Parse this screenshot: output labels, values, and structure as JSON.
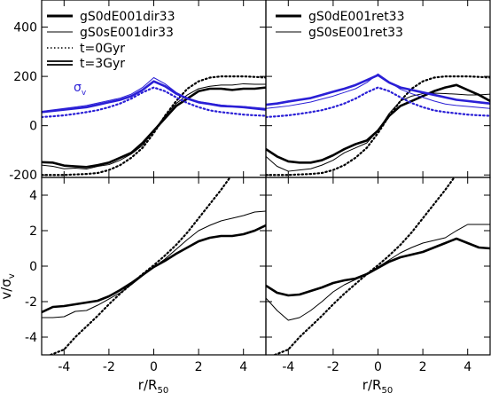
{
  "colors": {
    "black": "#000000",
    "blue": "#2a1fd6"
  },
  "figure": {
    "xlabel": "r/R",
    "xlabel_sub": "50",
    "ylabel": "v/σ",
    "ylabel_sub": "v",
    "sigma_label": "σ",
    "sigma_label_sub": "v",
    "legend_left": [
      {
        "text": "gS0dE001dir33",
        "style": "thick"
      },
      {
        "text": "gS0sE001dir33",
        "style": "thin"
      },
      {
        "text": "t=0Gyr",
        "style": "dotted"
      },
      {
        "text": "t=3Gyr",
        "style": "double"
      }
    ],
    "legend_right": [
      {
        "text": "gS0dE001ret33",
        "style": "thick"
      },
      {
        "text": "gS0sE001ret33",
        "style": "thin"
      }
    ]
  },
  "chart_data": [
    {
      "id": "top-left",
      "type": "line",
      "xlim": [
        -5,
        5
      ],
      "ylim": [
        -210,
        510
      ],
      "x_ticks": [
        -4,
        -2,
        0,
        2,
        4
      ],
      "y_ticks": [
        -200,
        0,
        200,
        400
      ],
      "series": [
        {
          "name": "gS0dE001dir33",
          "time": "t=3Gyr",
          "quantity": "v",
          "color": "black",
          "style": "thick",
          "x": [
            -5,
            -4.5,
            -4,
            -3.5,
            -3,
            -2.5,
            -2,
            -1.5,
            -1,
            -0.5,
            0,
            0.5,
            1,
            1.5,
            2,
            2.5,
            3,
            3.5,
            4,
            4.5,
            5
          ],
          "y": [
            -148,
            -150,
            -162,
            -165,
            -168,
            -160,
            -150,
            -130,
            -110,
            -70,
            -20,
            30,
            80,
            110,
            140,
            150,
            150,
            145,
            150,
            150,
            155
          ]
        },
        {
          "name": "gS0sE001dir33",
          "time": "t=3Gyr",
          "quantity": "v",
          "color": "black",
          "style": "thin",
          "x": [
            -5,
            -4.5,
            -4,
            -3.5,
            -3,
            -2.5,
            -2,
            -1.5,
            -1,
            -0.5,
            0,
            0.5,
            1,
            1.5,
            2,
            2.5,
            3,
            3.5,
            4,
            4.5,
            5
          ],
          "y": [
            -160,
            -165,
            -175,
            -172,
            -176,
            -165,
            -158,
            -140,
            -115,
            -80,
            -20,
            40,
            90,
            125,
            150,
            160,
            165,
            165,
            170,
            168,
            168
          ]
        },
        {
          "name": "t=0Gyr",
          "time": "t=0Gyr",
          "quantity": "v",
          "color": "black",
          "style": "dotted",
          "x": [
            -5,
            -4.5,
            -4,
            -3.5,
            -3,
            -2.5,
            -2,
            -1.5,
            -1,
            -0.5,
            0,
            0.5,
            1,
            1.5,
            2,
            2.5,
            3,
            3.5,
            4,
            4.5,
            5
          ],
          "y": [
            -200,
            -200,
            -200,
            -198,
            -196,
            -192,
            -180,
            -160,
            -130,
            -90,
            -30,
            40,
            100,
            150,
            180,
            195,
            200,
            200,
            200,
            198,
            195
          ]
        },
        {
          "name": "gS0dE001dir33",
          "time": "t=3Gyr",
          "quantity": "sigma",
          "color": "blue",
          "style": "thick",
          "x": [
            -5,
            -4.5,
            -4,
            -3.5,
            -3,
            -2.5,
            -2,
            -1.5,
            -1,
            -0.5,
            0,
            0.5,
            1,
            1.5,
            2,
            2.5,
            3,
            3.5,
            4,
            4.5,
            5
          ],
          "y": [
            55,
            60,
            65,
            70,
            75,
            85,
            95,
            105,
            120,
            145,
            180,
            160,
            130,
            110,
            95,
            88,
            80,
            78,
            75,
            70,
            65
          ]
        },
        {
          "name": "gS0sE001dir33",
          "time": "t=3Gyr",
          "quantity": "sigma",
          "color": "blue",
          "style": "thin",
          "x": [
            -5,
            -4.5,
            -4,
            -3.5,
            -3,
            -2.5,
            -2,
            -1.5,
            -1,
            -0.5,
            0,
            0.5,
            1,
            1.5,
            2,
            2.5,
            3,
            3.5,
            4,
            4.5,
            5
          ],
          "y": [
            58,
            64,
            70,
            76,
            82,
            92,
            102,
            112,
            128,
            155,
            195,
            170,
            135,
            112,
            98,
            90,
            84,
            80,
            78,
            74,
            70
          ]
        },
        {
          "name": "t=0Gyr",
          "time": "t=0Gyr",
          "quantity": "sigma",
          "color": "blue",
          "style": "dotted",
          "x": [
            -5,
            -4.5,
            -4,
            -3.5,
            -3,
            -2.5,
            -2,
            -1.5,
            -1,
            -0.5,
            0,
            0.5,
            1,
            1.5,
            2,
            2.5,
            3,
            3.5,
            4,
            4.5,
            5
          ],
          "y": [
            35,
            38,
            42,
            48,
            55,
            63,
            75,
            90,
            110,
            135,
            155,
            140,
            115,
            92,
            75,
            62,
            55,
            50,
            45,
            42,
            40
          ]
        }
      ]
    },
    {
      "id": "top-right",
      "type": "line",
      "xlim": [
        -5,
        5
      ],
      "ylim": [
        -210,
        510
      ],
      "x_ticks": [
        -4,
        -2,
        0,
        2,
        4
      ],
      "y_ticks": [
        -200,
        0,
        200,
        400
      ],
      "series": [
        {
          "name": "gS0dE001ret33",
          "time": "t=3Gyr",
          "quantity": "v",
          "color": "black",
          "style": "thick",
          "x": [
            -5,
            -4.5,
            -4,
            -3.5,
            -3,
            -2.5,
            -2,
            -1.5,
            -1,
            -0.5,
            0,
            0.5,
            1,
            1.5,
            2,
            2.5,
            3,
            3.5,
            4,
            4.5,
            5
          ],
          "y": [
            -95,
            -125,
            -145,
            -150,
            -150,
            -140,
            -120,
            -95,
            -75,
            -60,
            -20,
            40,
            80,
            100,
            120,
            140,
            155,
            165,
            145,
            125,
            100
          ]
        },
        {
          "name": "gS0sE001ret33",
          "time": "t=3Gyr",
          "quantity": "v",
          "color": "black",
          "style": "thin",
          "x": [
            -5,
            -4.5,
            -4,
            -3.5,
            -3,
            -2.5,
            -2,
            -1.5,
            -1,
            -0.5,
            0,
            0.5,
            1,
            1.5,
            2,
            2.5,
            3,
            3.5,
            4,
            4.5,
            5
          ],
          "y": [
            -125,
            -165,
            -185,
            -180,
            -175,
            -160,
            -140,
            -110,
            -90,
            -70,
            -20,
            50,
            100,
            120,
            130,
            132,
            130,
            128,
            125,
            125,
            128
          ]
        },
        {
          "name": "t=0Gyr",
          "time": "t=0Gyr",
          "quantity": "v",
          "color": "black",
          "style": "dotted",
          "x": [
            -5,
            -4.5,
            -4,
            -3.5,
            -3,
            -2.5,
            -2,
            -1.5,
            -1,
            -0.5,
            0,
            0.5,
            1,
            1.5,
            2,
            2.5,
            3,
            3.5,
            4,
            4.5,
            5
          ],
          "y": [
            -200,
            -200,
            -200,
            -198,
            -196,
            -192,
            -180,
            -160,
            -130,
            -90,
            -30,
            40,
            100,
            150,
            180,
            195,
            200,
            200,
            200,
            198,
            195
          ]
        },
        {
          "name": "gS0dE001ret33",
          "time": "t=3Gyr",
          "quantity": "sigma",
          "color": "blue",
          "style": "thick",
          "x": [
            -5,
            -4.5,
            -4,
            -3.5,
            -3,
            -2.5,
            -2,
            -1.5,
            -1,
            -0.5,
            0,
            0.5,
            1,
            1.5,
            2,
            2.5,
            3,
            3.5,
            4,
            4.5,
            5
          ],
          "y": [
            85,
            90,
            98,
            105,
            112,
            125,
            138,
            150,
            165,
            185,
            205,
            175,
            155,
            145,
            135,
            125,
            115,
            105,
            100,
            95,
            90
          ]
        },
        {
          "name": "gS0sE001ret33",
          "time": "t=3Gyr",
          "quantity": "sigma",
          "color": "blue",
          "style": "thin",
          "x": [
            -5,
            -4.5,
            -4,
            -3.5,
            -3,
            -2.5,
            -2,
            -1.5,
            -1,
            -0.5,
            0,
            0.5,
            1,
            1.5,
            2,
            2.5,
            3,
            3.5,
            4,
            4.5,
            5
          ],
          "y": [
            70,
            75,
            80,
            88,
            96,
            108,
            120,
            135,
            150,
            175,
            210,
            178,
            148,
            130,
            115,
            100,
            88,
            82,
            78,
            74,
            70
          ]
        },
        {
          "name": "t=0Gyr",
          "time": "t=0Gyr",
          "quantity": "sigma",
          "color": "blue",
          "style": "dotted",
          "x": [
            -5,
            -4.5,
            -4,
            -3.5,
            -3,
            -2.5,
            -2,
            -1.5,
            -1,
            -0.5,
            0,
            0.5,
            1,
            1.5,
            2,
            2.5,
            3,
            3.5,
            4,
            4.5,
            5
          ],
          "y": [
            35,
            38,
            42,
            48,
            55,
            63,
            75,
            90,
            110,
            135,
            155,
            140,
            115,
            92,
            75,
            62,
            55,
            50,
            45,
            42,
            40
          ]
        }
      ]
    },
    {
      "id": "bottom-left",
      "type": "line",
      "xlim": [
        -5,
        5
      ],
      "ylim": [
        -5,
        5
      ],
      "x_ticks": [
        -4,
        -2,
        0,
        2,
        4
      ],
      "y_ticks": [
        -4,
        -2,
        0,
        2,
        4
      ],
      "series": [
        {
          "name": "gS0dE001dir33",
          "time": "t=3Gyr",
          "quantity": "v/sigma",
          "color": "black",
          "style": "thick",
          "x": [
            -5,
            -4.5,
            -4,
            -3.5,
            -3,
            -2.5,
            -2,
            -1.5,
            -1,
            -0.5,
            0,
            0.5,
            1,
            1.5,
            2,
            2.5,
            3,
            3.5,
            4,
            4.5,
            5
          ],
          "y": [
            -2.6,
            -2.3,
            -2.25,
            -2.15,
            -2.05,
            -1.95,
            -1.7,
            -1.35,
            -0.95,
            -0.5,
            -0.05,
            0.3,
            0.7,
            1.05,
            1.4,
            1.6,
            1.7,
            1.7,
            1.8,
            2.0,
            2.3
          ]
        },
        {
          "name": "gS0sE001dir33",
          "time": "t=3Gyr",
          "quantity": "v/sigma",
          "color": "black",
          "style": "thin",
          "x": [
            -5,
            -4.5,
            -4,
            -3.5,
            -3,
            -2.5,
            -2,
            -1.5,
            -1,
            -0.5,
            0,
            0.5,
            1,
            1.5,
            2,
            2.5,
            3,
            3.5,
            4,
            4.5,
            5
          ],
          "y": [
            -2.9,
            -2.9,
            -2.85,
            -2.55,
            -2.5,
            -2.2,
            -1.85,
            -1.5,
            -1.05,
            -0.55,
            -0.05,
            0.4,
            0.95,
            1.5,
            2.0,
            2.3,
            2.55,
            2.7,
            2.85,
            3.05,
            3.1
          ]
        },
        {
          "name": "t=0Gyr",
          "time": "t=0Gyr",
          "quantity": "v/sigma",
          "color": "black",
          "style": "dotted",
          "x": [
            -4.6,
            -4,
            -3.5,
            -3,
            -2.5,
            -2,
            -1.5,
            -1,
            -0.5,
            0,
            0.5,
            1,
            1.5,
            2,
            2.5,
            3,
            3.4
          ],
          "y": [
            -5.0,
            -4.7,
            -4.0,
            -3.4,
            -2.8,
            -2.15,
            -1.55,
            -1.0,
            -0.45,
            0.05,
            0.6,
            1.2,
            1.9,
            2.7,
            3.5,
            4.3,
            5.0
          ]
        }
      ]
    },
    {
      "id": "bottom-right",
      "type": "line",
      "xlim": [
        -5,
        5
      ],
      "ylim": [
        -5,
        5
      ],
      "x_ticks": [
        -4,
        -2,
        0,
        2,
        4
      ],
      "y_ticks": [
        -4,
        -2,
        0,
        2,
        4
      ],
      "series": [
        {
          "name": "gS0dE001ret33",
          "time": "t=3Gyr",
          "quantity": "v/sigma",
          "color": "black",
          "style": "thick",
          "x": [
            -5,
            -4.5,
            -4,
            -3.5,
            -3,
            -2.5,
            -2,
            -1.5,
            -1,
            -0.5,
            0,
            0.5,
            1,
            1.5,
            2,
            2.5,
            3,
            3.5,
            4,
            4.5,
            5
          ],
          "y": [
            -1.1,
            -1.5,
            -1.65,
            -1.6,
            -1.4,
            -1.2,
            -0.95,
            -0.8,
            -0.7,
            -0.45,
            -0.1,
            0.25,
            0.5,
            0.65,
            0.8,
            1.05,
            1.3,
            1.55,
            1.3,
            1.05,
            1.0
          ]
        },
        {
          "name": "gS0sE001ret33",
          "time": "t=3Gyr",
          "quantity": "v/sigma",
          "color": "black",
          "style": "thin",
          "x": [
            -5,
            -4.5,
            -4,
            -3.5,
            -3,
            -2.5,
            -2,
            -1.5,
            -1,
            -0.5,
            0,
            0.5,
            1,
            1.5,
            2,
            2.5,
            3,
            3.5,
            4,
            4.5,
            5
          ],
          "y": [
            -1.8,
            -2.5,
            -3.05,
            -2.9,
            -2.5,
            -2.0,
            -1.45,
            -1.05,
            -0.75,
            -0.45,
            -0.05,
            0.35,
            0.75,
            1.05,
            1.3,
            1.45,
            1.6,
            2.0,
            2.35,
            2.35,
            2.35
          ]
        },
        {
          "name": "t=0Gyr",
          "time": "t=0Gyr",
          "quantity": "v/sigma",
          "color": "black",
          "style": "dotted",
          "x": [
            -4.6,
            -4,
            -3.5,
            -3,
            -2.5,
            -2,
            -1.5,
            -1,
            -0.5,
            0,
            0.5,
            1,
            1.5,
            2,
            2.5,
            3,
            3.4
          ],
          "y": [
            -5.0,
            -4.7,
            -4.0,
            -3.4,
            -2.8,
            -2.15,
            -1.55,
            -1.0,
            -0.45,
            0.05,
            0.6,
            1.2,
            1.9,
            2.7,
            3.5,
            4.3,
            5.0
          ]
        }
      ]
    }
  ]
}
